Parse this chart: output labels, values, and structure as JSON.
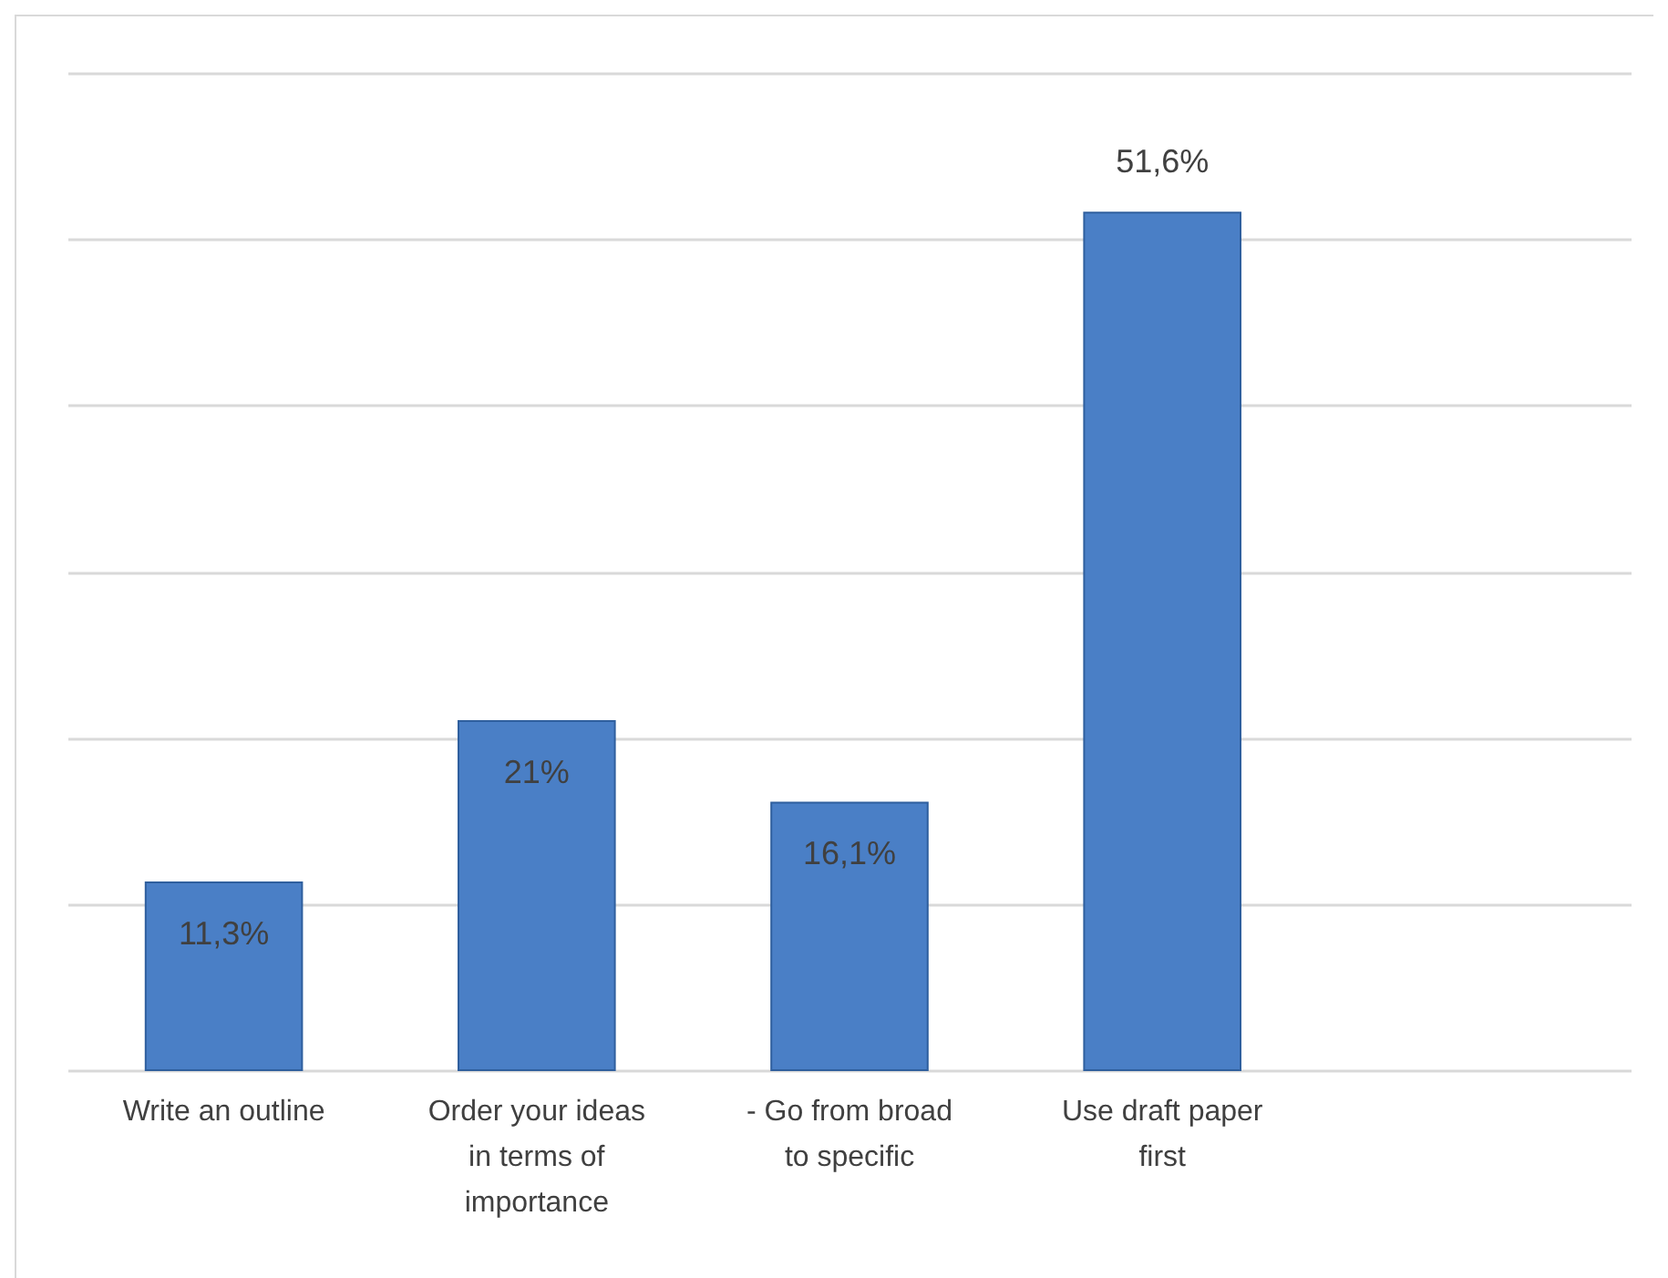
{
  "chart_data": {
    "type": "bar",
    "categories": [
      "Write an outline",
      "Order your ideas in terms of importance",
      "- Go from broad to specific",
      "Use draft paper first",
      null
    ],
    "values": [
      11.3,
      21,
      16.1,
      51.6,
      null
    ],
    "value_labels": [
      "11,3%",
      "21%",
      "16,1%",
      "51,6%",
      null
    ],
    "color": "#4a7fc6",
    "ylim": [
      0,
      60
    ],
    "yticks": [
      {
        "value": 0,
        "label": null
      },
      {
        "value": 10,
        "label": null
      },
      {
        "value": 20,
        "label": null
      },
      {
        "value": 30,
        "label": null
      },
      {
        "value": 40,
        "label": null
      },
      {
        "value": 50,
        "label": null
      },
      {
        "value": 60,
        "label": null
      }
    ],
    "tick_labels": "x",
    "grid": "y"
  }
}
